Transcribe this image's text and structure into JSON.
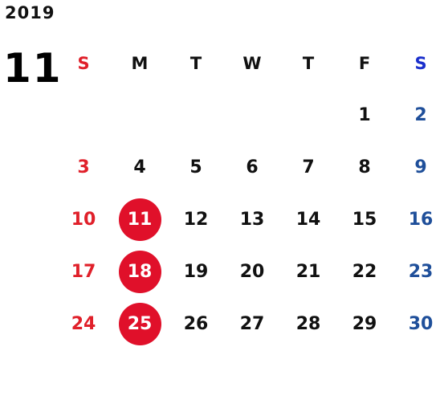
{
  "year": "2019",
  "month": "11",
  "weekdays": [
    "S",
    "M",
    "T",
    "W",
    "T",
    "F",
    "S"
  ],
  "weeks": [
    [
      "",
      "",
      "",
      "",
      "",
      "1",
      "2"
    ],
    [
      "3",
      "4",
      "5",
      "6",
      "7",
      "8",
      "9"
    ],
    [
      "10",
      "11",
      "12",
      "13",
      "14",
      "15",
      "16"
    ],
    [
      "17",
      "18",
      "19",
      "20",
      "21",
      "22",
      "23"
    ],
    [
      "24",
      "25",
      "26",
      "27",
      "28",
      "29",
      "30"
    ]
  ],
  "highlighted_days": [
    "11",
    "18",
    "25"
  ],
  "colors": {
    "sunday": "#e0202a",
    "saturday": "#1f4f9a",
    "highlight": "#e0102a"
  }
}
